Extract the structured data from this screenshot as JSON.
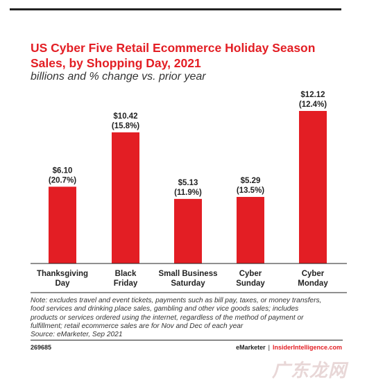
{
  "title": "US Cyber Five Retail Ecommerce Holiday Season Sales, by Shopping Day, 2021",
  "subtitle": "billions and % change vs. prior year",
  "chart_data": {
    "type": "bar",
    "categories": [
      [
        "Thanksgiving",
        "Day"
      ],
      [
        "Black",
        "Friday"
      ],
      [
        "Small Business",
        "Saturday"
      ],
      [
        "Cyber",
        "Sunday"
      ],
      [
        "Cyber",
        "Monday"
      ]
    ],
    "values": [
      6.1,
      10.42,
      5.13,
      5.29,
      12.12
    ],
    "value_labels": [
      "$6.10",
      "$10.42",
      "$5.13",
      "$5.29",
      "$12.12"
    ],
    "change_labels": [
      "(20.7%)",
      "(15.8%)",
      "(11.9%)",
      "(13.5%)",
      "(12.4%)"
    ],
    "bar_color": "#e31e24",
    "ylim": [
      0,
      12.12
    ],
    "grid": false
  },
  "note_lines": [
    "Note: excludes travel and event tickets, payments such as bill pay, taxes, or money transfers,",
    "food services and drinking place sales, gambling and other vice goods sales; includes",
    "products or services ordered using the internet, regardless of the method of payment or",
    "fulfillment; retail ecommerce sales are for Nov and Dec of each year",
    "Source: eMarketer, Sep 2021"
  ],
  "footer": {
    "id": "269685",
    "brand_left": "eMarketer",
    "separator": "|",
    "brand_right": "InsiderIntelligence.com"
  },
  "watermark": "广东龙网"
}
